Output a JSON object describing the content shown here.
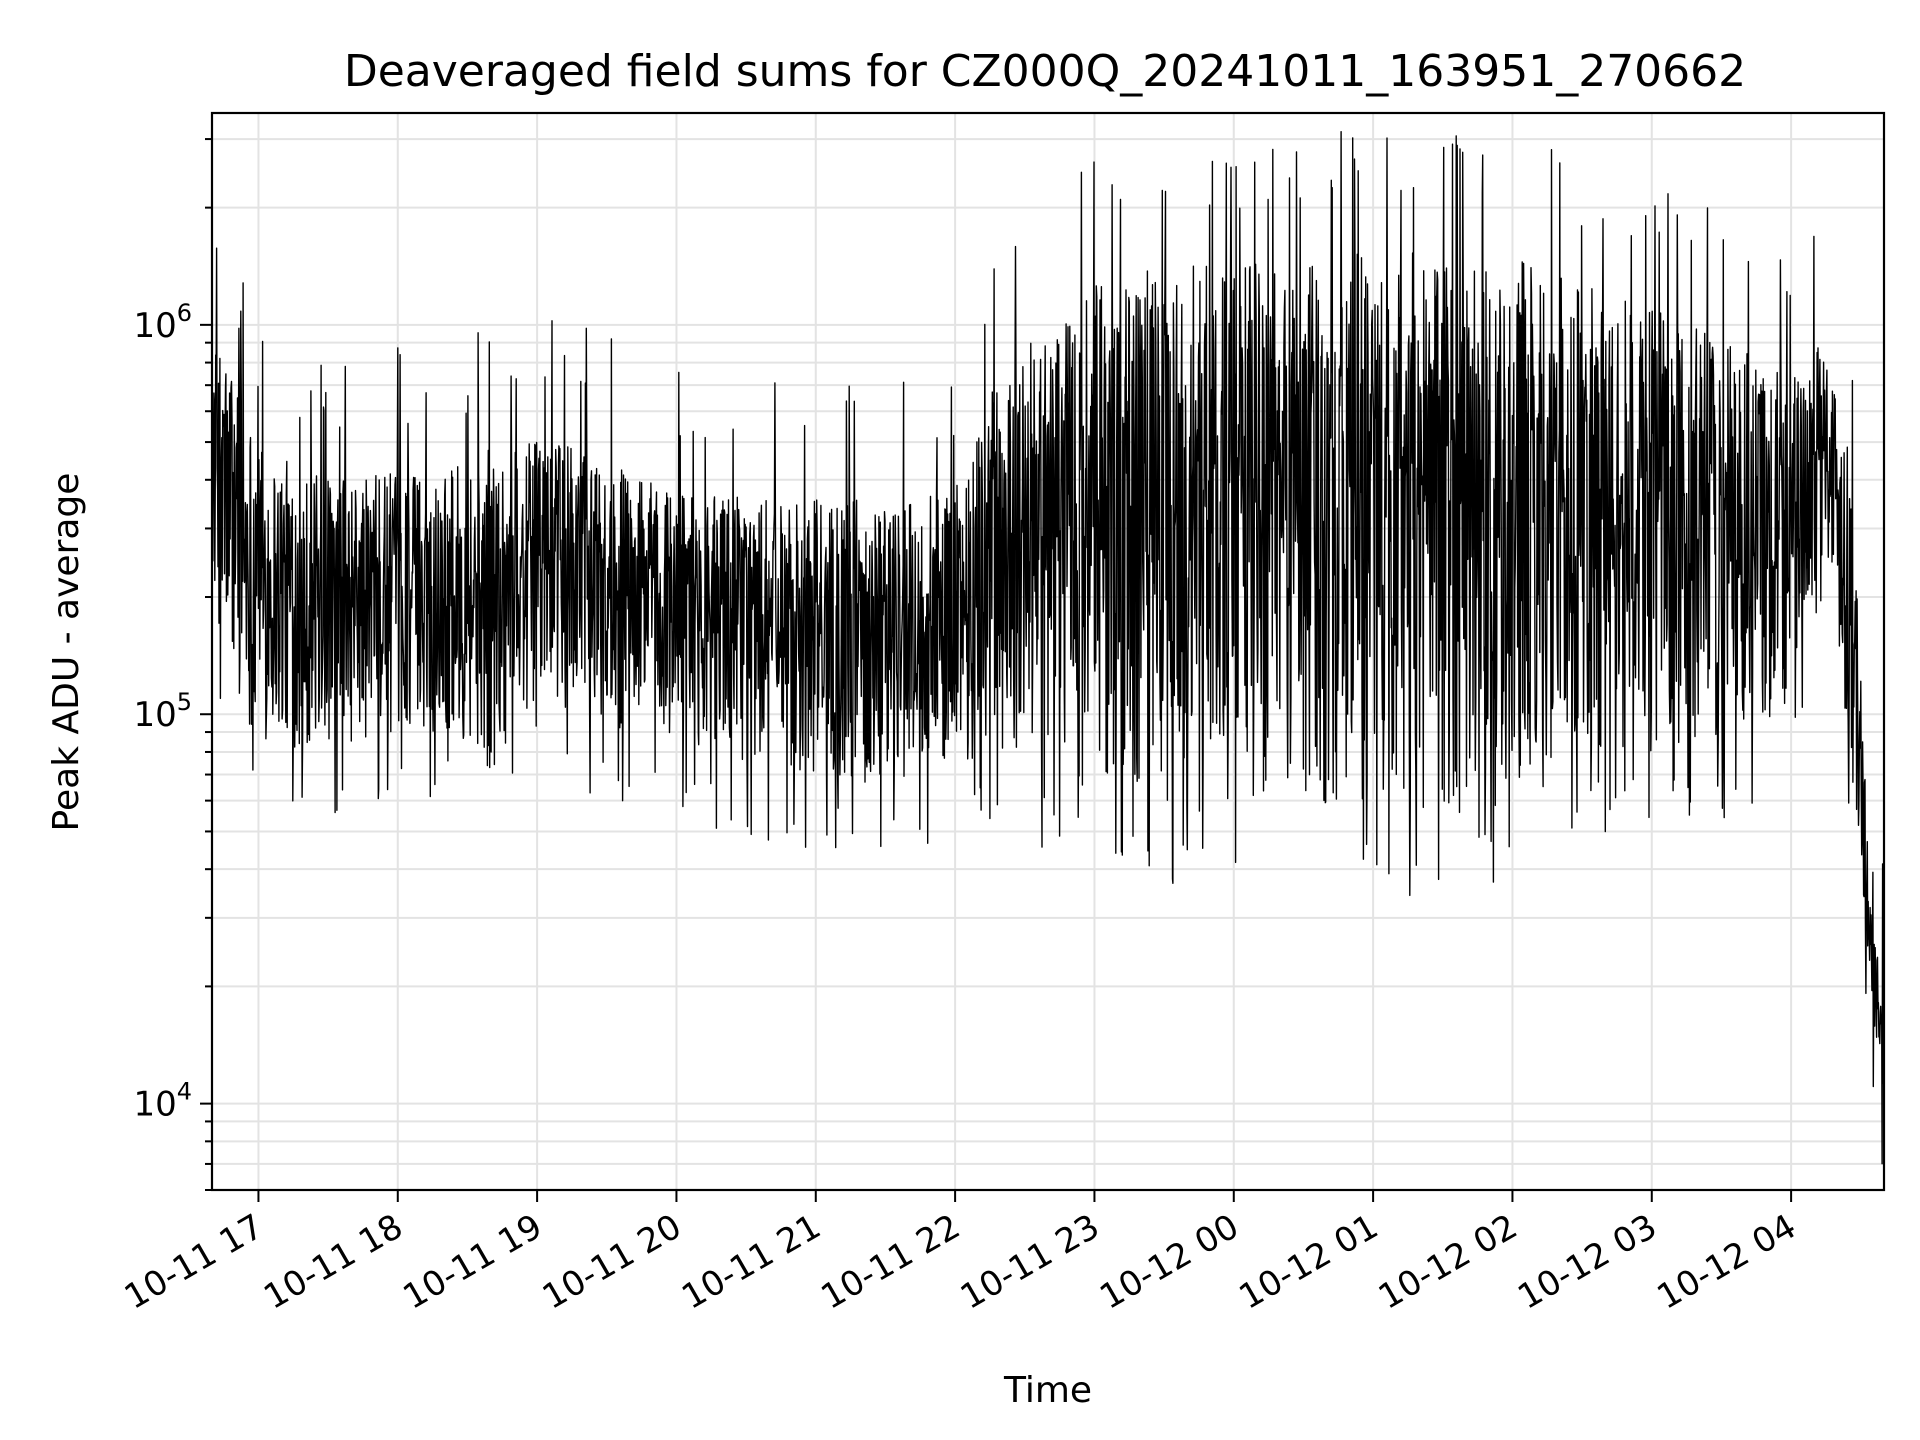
{
  "chart_data": {
    "type": "line",
    "title": "Deaveraged field sums for CZ000Q_20241011_163951_270662",
    "xlabel": "Time",
    "ylabel": "Peak ADU - average",
    "yscale": "log",
    "xlim": [
      "2024-10-11 16:40",
      "2024-10-12 04:40"
    ],
    "ylim": [
      6000,
      3500000
    ],
    "grid": true,
    "line_color": "#000000",
    "x_ticks": [
      {
        "value": "2024-10-11 17:00",
        "label": "10-11 17"
      },
      {
        "value": "2024-10-11 18:00",
        "label": "10-11 18"
      },
      {
        "value": "2024-10-11 19:00",
        "label": "10-11 19"
      },
      {
        "value": "2024-10-11 20:00",
        "label": "10-11 20"
      },
      {
        "value": "2024-10-11 21:00",
        "label": "10-11 21"
      },
      {
        "value": "2024-10-11 22:00",
        "label": "10-11 22"
      },
      {
        "value": "2024-10-11 23:00",
        "label": "10-11 23"
      },
      {
        "value": "2024-10-12 00:00",
        "label": "10-12 00"
      },
      {
        "value": "2024-10-12 01:00",
        "label": "10-12 01"
      },
      {
        "value": "2024-10-12 02:00",
        "label": "10-12 02"
      },
      {
        "value": "2024-10-12 03:00",
        "label": "10-12 03"
      },
      {
        "value": "2024-10-12 04:00",
        "label": "10-12 04"
      }
    ],
    "y_ticks": [
      {
        "value": 10000,
        "base": "10",
        "exp": "4"
      },
      {
        "value": 100000,
        "base": "10",
        "exp": "5"
      },
      {
        "value": 1000000,
        "base": "10",
        "exp": "6"
      }
    ],
    "envelope": {
      "x": [
        "2024-10-11 16:40",
        "2024-10-11 16:50",
        "2024-10-11 17:00",
        "2024-10-11 17:20",
        "2024-10-11 17:40",
        "2024-10-11 18:00",
        "2024-10-11 18:20",
        "2024-10-11 18:40",
        "2024-10-11 19:00",
        "2024-10-11 19:20",
        "2024-10-11 19:40",
        "2024-10-11 20:00",
        "2024-10-11 20:30",
        "2024-10-11 21:00",
        "2024-10-11 21:30",
        "2024-10-11 22:00",
        "2024-10-11 22:20",
        "2024-10-11 22:40",
        "2024-10-11 23:00",
        "2024-10-11 23:30",
        "2024-10-12 00:00",
        "2024-10-12 00:30",
        "2024-10-12 01:00",
        "2024-10-12 01:30",
        "2024-10-12 02:00",
        "2024-10-12 02:30",
        "2024-10-12 03:00",
        "2024-10-12 03:30",
        "2024-10-12 04:00",
        "2024-10-12 04:15",
        "2024-10-12 04:25",
        "2024-10-12 04:35",
        "2024-10-12 04:40"
      ],
      "high": [
        900000,
        800000,
        500000,
        420000,
        400000,
        420000,
        420000,
        480000,
        500000,
        480000,
        420000,
        380000,
        360000,
        360000,
        360000,
        380000,
        800000,
        1000000,
        1300000,
        1400000,
        1450000,
        1450000,
        1550000,
        1550000,
        1500000,
        1300000,
        1100000,
        950000,
        800000,
        900000,
        550000,
        28000,
        20000
      ],
      "low": [
        200000,
        110000,
        85000,
        80000,
        80000,
        90000,
        90000,
        70000,
        110000,
        100000,
        90000,
        85000,
        75000,
        70000,
        65000,
        75000,
        80000,
        70000,
        62000,
        55000,
        55000,
        55000,
        52000,
        55000,
        58000,
        75000,
        80000,
        80000,
        100000,
        280000,
        80000,
        18000,
        9000
      ]
    }
  }
}
